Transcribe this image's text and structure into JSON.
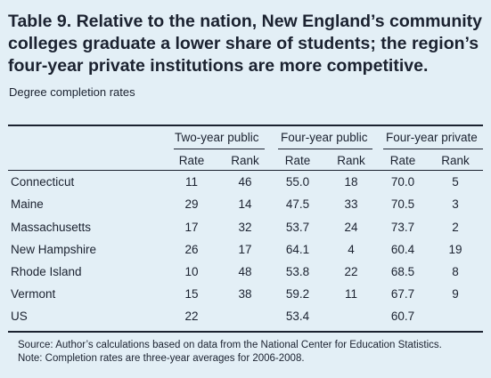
{
  "title": "Table 9. Relative to the nation, New England’s community colleges graduate a lower share of students; the region’s four-year private institutions are more competitive.",
  "subtitle": "Degree completion rates",
  "groups": [
    "Two-year public",
    "Four-year public",
    "Four-year private"
  ],
  "subheaders": [
    "Rate",
    "Rank",
    "Rate",
    "Rank",
    "Rate",
    "Rank"
  ],
  "rows": [
    {
      "state": "Connecticut",
      "cells": [
        "11",
        "46",
        "55.0",
        "18",
        "70.0",
        "5"
      ]
    },
    {
      "state": "Maine",
      "cells": [
        "29",
        "14",
        "47.5",
        "33",
        "70.5",
        "3"
      ]
    },
    {
      "state": "Massachusetts",
      "cells": [
        "17",
        "32",
        "53.7",
        "24",
        "73.7",
        "2"
      ]
    },
    {
      "state": "New Hampshire",
      "cells": [
        "26",
        "17",
        "64.1",
        "4",
        "60.4",
        "19"
      ]
    },
    {
      "state": "Rhode Island",
      "cells": [
        "10",
        "48",
        "53.8",
        "22",
        "68.5",
        "8"
      ]
    },
    {
      "state": "Vermont",
      "cells": [
        "15",
        "38",
        "59.2",
        "11",
        "67.7",
        "9"
      ]
    },
    {
      "state": "US",
      "cells": [
        "22",
        "",
        "53.4",
        "",
        "60.7",
        ""
      ]
    }
  ],
  "source": "Source: Author’s calculations based on data from the National Center for Education Statistics.",
  "note": "Note: Completion rates are three-year averages for 2006-2008."
}
